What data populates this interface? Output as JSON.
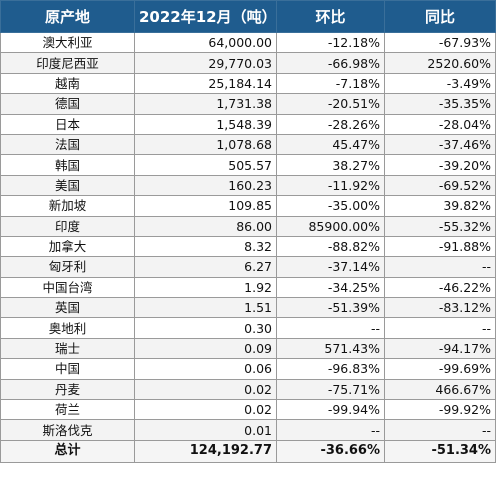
{
  "table": {
    "headers": [
      "原产地",
      "2022年12月（吨）",
      "环比",
      "同比"
    ],
    "rows": [
      {
        "origin": "澳大利亚",
        "tons": "64,000.00",
        "mom": "-12.18%",
        "yoy": "-67.93%"
      },
      {
        "origin": "印度尼西亚",
        "tons": "29,770.03",
        "mom": "-66.98%",
        "yoy": "2520.60%"
      },
      {
        "origin": "越南",
        "tons": "25,184.14",
        "mom": "-7.18%",
        "yoy": "-3.49%"
      },
      {
        "origin": "德国",
        "tons": "1,731.38",
        "mom": "-20.51%",
        "yoy": "-35.35%"
      },
      {
        "origin": "日本",
        "tons": "1,548.39",
        "mom": "-28.26%",
        "yoy": "-28.04%"
      },
      {
        "origin": "法国",
        "tons": "1,078.68",
        "mom": "45.47%",
        "yoy": "-37.46%"
      },
      {
        "origin": "韩国",
        "tons": "505.57",
        "mom": "38.27%",
        "yoy": "-39.20%"
      },
      {
        "origin": "美国",
        "tons": "160.23",
        "mom": "-11.92%",
        "yoy": "-69.52%"
      },
      {
        "origin": "新加坡",
        "tons": "109.85",
        "mom": "-35.00%",
        "yoy": "39.82%"
      },
      {
        "origin": "印度",
        "tons": "86.00",
        "mom": "85900.00%",
        "yoy": "-55.32%"
      },
      {
        "origin": "加拿大",
        "tons": "8.32",
        "mom": "-88.82%",
        "yoy": "-91.88%"
      },
      {
        "origin": "匈牙利",
        "tons": "6.27",
        "mom": "-37.14%",
        "yoy": "--"
      },
      {
        "origin": "中国台湾",
        "tons": "1.92",
        "mom": "-34.25%",
        "yoy": "-46.22%"
      },
      {
        "origin": "英国",
        "tons": "1.51",
        "mom": "-51.39%",
        "yoy": "-83.12%"
      },
      {
        "origin": "奥地利",
        "tons": "0.30",
        "mom": "--",
        "yoy": "--"
      },
      {
        "origin": "瑞士",
        "tons": "0.09",
        "mom": "571.43%",
        "yoy": "-94.17%"
      },
      {
        "origin": "中国",
        "tons": "0.06",
        "mom": "-96.83%",
        "yoy": "-99.69%"
      },
      {
        "origin": "丹麦",
        "tons": "0.02",
        "mom": "-75.71%",
        "yoy": "466.67%"
      },
      {
        "origin": "荷兰",
        "tons": "0.02",
        "mom": "-99.94%",
        "yoy": "-99.92%"
      },
      {
        "origin": "斯洛伐克",
        "tons": "0.01",
        "mom": "--",
        "yoy": "--"
      }
    ],
    "total": {
      "origin": "总计",
      "tons": "124,192.77",
      "mom": "-36.66%",
      "yoy": "-51.34%"
    }
  }
}
